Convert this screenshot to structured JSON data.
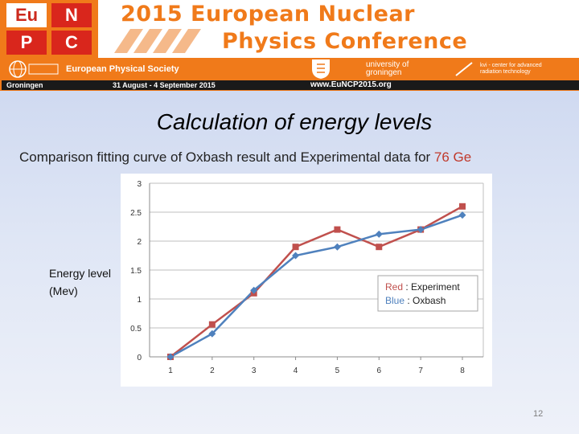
{
  "header": {
    "logo_letters": [
      "Eu",
      "N",
      "P",
      "C"
    ],
    "title_line1": "2015 European Nuclear",
    "title_line2": "Physics Conference",
    "society": "European Physical Society",
    "university_line1": "university of",
    "university_line2": "groningen",
    "kvi_line1": "kvi - center for advanced",
    "kvi_line2": "radiation technology",
    "city": "Groningen",
    "dates": "31 August - 4 September 2015",
    "website": "www.EuNCP2015.org",
    "accent_color": "#f07a1a"
  },
  "slide": {
    "title": "Calculation of energy levels",
    "subtitle_prefix": "Comparison fitting curve of Oxbash result and Experimental data for ",
    "subtitle_highlight": "76 Ge",
    "y_title_line1": "Energy level",
    "y_title_line2": "(Mev)",
    "page_number": "12"
  },
  "chart_data": {
    "type": "line",
    "x": [
      1,
      2,
      3,
      4,
      5,
      6,
      7,
      8
    ],
    "ylim": [
      0,
      3
    ],
    "yticks": [
      "0",
      "0.5",
      "1",
      "1.5",
      "2",
      "2.5",
      "3"
    ],
    "grid": true,
    "legend_placement": "right",
    "series": [
      {
        "name": "Experiment",
        "legend_color_word": "Red",
        "color": "#c0504d",
        "marker": "square",
        "values": [
          0,
          0.56,
          1.1,
          1.9,
          2.2,
          1.9,
          2.2,
          2.6
        ]
      },
      {
        "name": "Oxbash",
        "legend_color_word": "Blue",
        "color": "#4f81bd",
        "marker": "diamond",
        "values": [
          0,
          0.4,
          1.15,
          1.75,
          1.9,
          2.12,
          2.2,
          2.45
        ]
      }
    ]
  }
}
